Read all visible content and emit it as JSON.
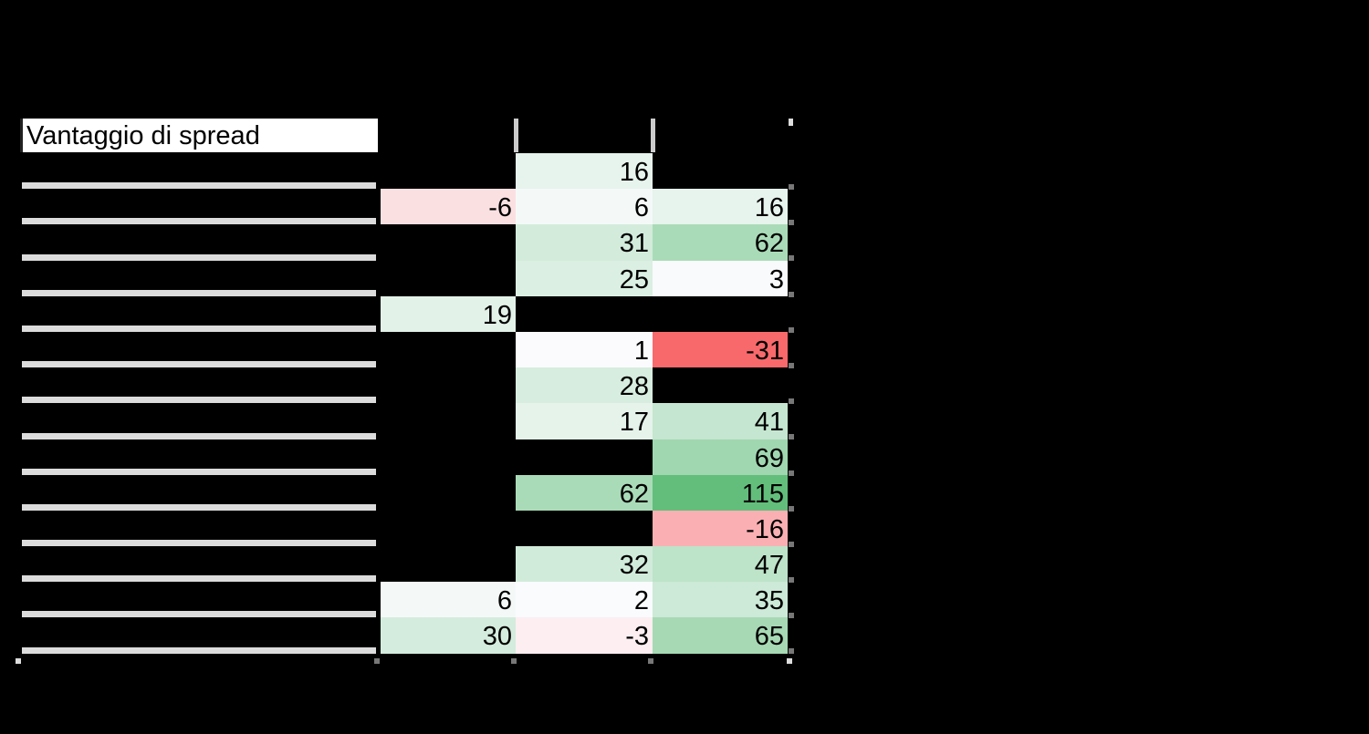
{
  "title": "Vantaggio di spread",
  "columns": [
    "",
    "",
    ""
  ],
  "rows": [
    {
      "label": "",
      "values": [
        null,
        16,
        null
      ]
    },
    {
      "label": "",
      "values": [
        -6,
        6,
        16
      ]
    },
    {
      "label": "",
      "values": [
        null,
        31,
        62
      ]
    },
    {
      "label": "",
      "values": [
        null,
        25,
        3
      ]
    },
    {
      "label": "",
      "values": [
        19,
        null,
        null
      ]
    },
    {
      "label": "",
      "values": [
        null,
        1,
        -31
      ]
    },
    {
      "label": "",
      "values": [
        null,
        28,
        null
      ]
    },
    {
      "label": "",
      "values": [
        null,
        17,
        41
      ]
    },
    {
      "label": "",
      "values": [
        null,
        null,
        69
      ]
    },
    {
      "label": "",
      "values": [
        null,
        62,
        115
      ]
    },
    {
      "label": "",
      "values": [
        null,
        null,
        -16
      ]
    },
    {
      "label": "",
      "values": [
        null,
        32,
        47
      ]
    },
    {
      "label": "",
      "values": [
        6,
        2,
        35
      ]
    },
    {
      "label": "",
      "values": [
        30,
        -3,
        65
      ]
    }
  ],
  "colors": {
    "background": "#000000",
    "positive_max": "#63be7b",
    "neutral": "#fcfcff",
    "negative_max": "#f8696b"
  },
  "chart_data": {
    "type": "heatmap",
    "title": "Vantaggio di spread",
    "categories": [
      "",
      "",
      "",
      "",
      "",
      "",
      "",
      "",
      "",
      "",
      "",
      "",
      "",
      ""
    ],
    "series": [
      {
        "name": "",
        "values": [
          null,
          -6,
          null,
          null,
          19,
          null,
          null,
          null,
          null,
          null,
          null,
          null,
          6,
          30
        ]
      },
      {
        "name": "",
        "values": [
          16,
          6,
          31,
          25,
          null,
          1,
          28,
          17,
          null,
          62,
          null,
          32,
          2,
          -3
        ]
      },
      {
        "name": "",
        "values": [
          null,
          16,
          62,
          3,
          null,
          -31,
          null,
          41,
          69,
          115,
          -16,
          47,
          35,
          65
        ]
      }
    ],
    "xlabel": "",
    "ylabel": "",
    "color_scale": {
      "min": -31,
      "max": 115,
      "min_color": "#f8696b",
      "mid_color": "#fcfcff",
      "max_color": "#63be7b"
    },
    "grid": false,
    "legend": "none"
  }
}
